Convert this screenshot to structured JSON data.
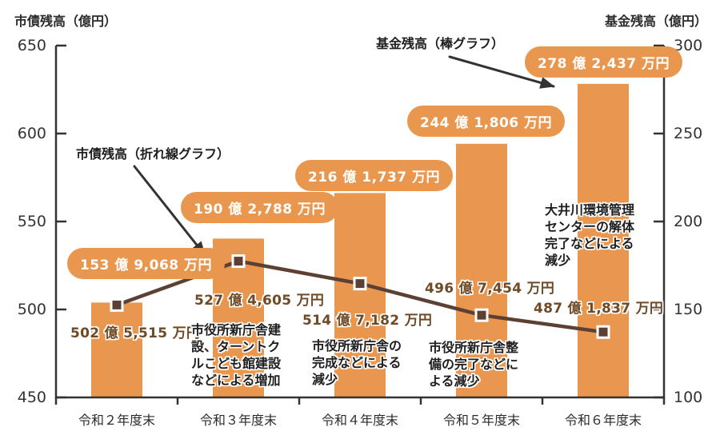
{
  "colors": {
    "orange": "#E9964F",
    "line_brown": "#5C4033",
    "value_brown": "#6E4A26",
    "axis": "#333333"
  },
  "chart_data": {
    "type": "bar",
    "subtype": "combo-bar-line",
    "grid": false,
    "legend_position": "arrow-callouts-inside-plot",
    "categories": [
      "令和２年度末",
      "令和３年度末",
      "令和４年度末",
      "令和５年度末",
      "令和６年度末"
    ],
    "series": [
      {
        "name": "基金残高（棒グラフ）",
        "type": "bar",
        "axis": "right",
        "values": [
          153.9068,
          190.2788,
          216.1737,
          244.1806,
          278.2437
        ],
        "labels": [
          "153 億 9,068 万円",
          "190 億 2,788 万円",
          "216 億 1,737 万円",
          "244 億 1,806 万円",
          "278 億 2,437 万円"
        ]
      },
      {
        "name": "市債残高（折れ線グラフ）",
        "type": "line",
        "axis": "left",
        "values": [
          502.5515,
          527.4605,
          514.7182,
          496.7454,
          487.1837
        ],
        "labels": [
          "502 億 5,515 万円",
          "527 億 4,605 万円",
          "514 億 7,182 万円",
          "496 億 7,454 万円",
          "487 億 1,837 万円"
        ]
      }
    ],
    "left_axis": {
      "title": "市債残高（億円）",
      "min": 450,
      "max": 650,
      "ticks": [
        450,
        500,
        550,
        600,
        650
      ]
    },
    "right_axis": {
      "title": "基金残高（億円）",
      "min": 100,
      "max": 300,
      "ticks": [
        100,
        150,
        200,
        250,
        300
      ]
    },
    "annotations": {
      "line_callout": "市債残高（折れ線グラフ）",
      "bar_callout": "基金残高（棒グラフ）",
      "notes": [
        {
          "category": "令和３年度末",
          "text": "市役所新庁舎建設、ターントクルこども館建設などによる増加"
        },
        {
          "category": "令和４年度末",
          "text": "市役所新庁舎の完成などによる減少"
        },
        {
          "category": "令和５年度末",
          "text": "市役所新庁舎整備の完了などによる減少"
        },
        {
          "category": "令和６年度末",
          "text": "大井川環境管理センターの解体完了などによる減少"
        }
      ]
    }
  }
}
